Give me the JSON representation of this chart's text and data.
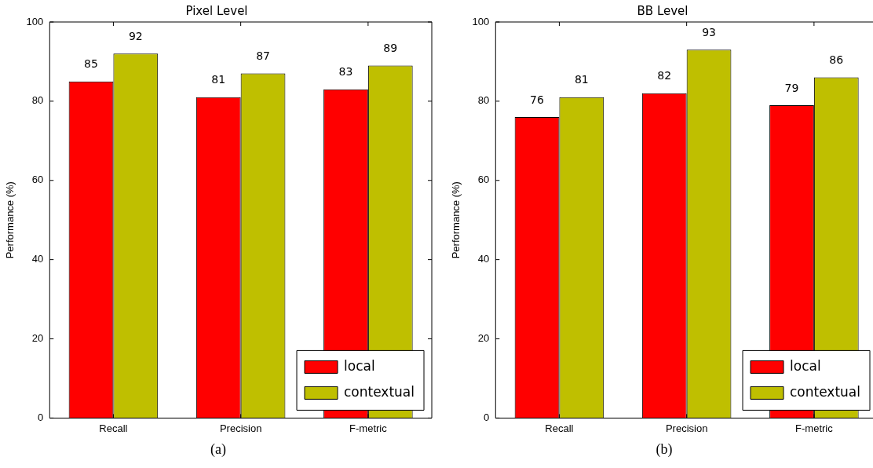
{
  "chart_data": [
    {
      "type": "bar",
      "title": "Pixel Level",
      "ylabel": "Performance (%)",
      "categories": [
        "Recall",
        "Precision",
        "F-metric"
      ],
      "series": [
        {
          "name": "local",
          "color": "#ff0000",
          "values": [
            85,
            81,
            83
          ]
        },
        {
          "name": "contextual",
          "color": "#bfbf00",
          "values": [
            92,
            87,
            89
          ]
        }
      ],
      "ylim": [
        0,
        100
      ],
      "yticks": [
        0,
        20,
        40,
        60,
        80,
        100
      ],
      "grid": false,
      "legend": "bottom right",
      "data_labels": true,
      "annotations": [
        "(a)"
      ]
    },
    {
      "type": "bar",
      "title": "BB Level",
      "ylabel": "Performance (%)",
      "categories": [
        "Recall",
        "Precision",
        "F-metric"
      ],
      "series": [
        {
          "name": "local",
          "color": "#ff0000",
          "values": [
            76,
            82,
            79
          ]
        },
        {
          "name": "contextual",
          "color": "#bfbf00",
          "values": [
            81,
            93,
            86
          ]
        }
      ],
      "ylim": [
        0,
        100
      ],
      "yticks": [
        0,
        20,
        40,
        60,
        80,
        100
      ],
      "grid": false,
      "legend": "bottom right",
      "data_labels": true,
      "annotations": [
        "(b)"
      ]
    }
  ]
}
